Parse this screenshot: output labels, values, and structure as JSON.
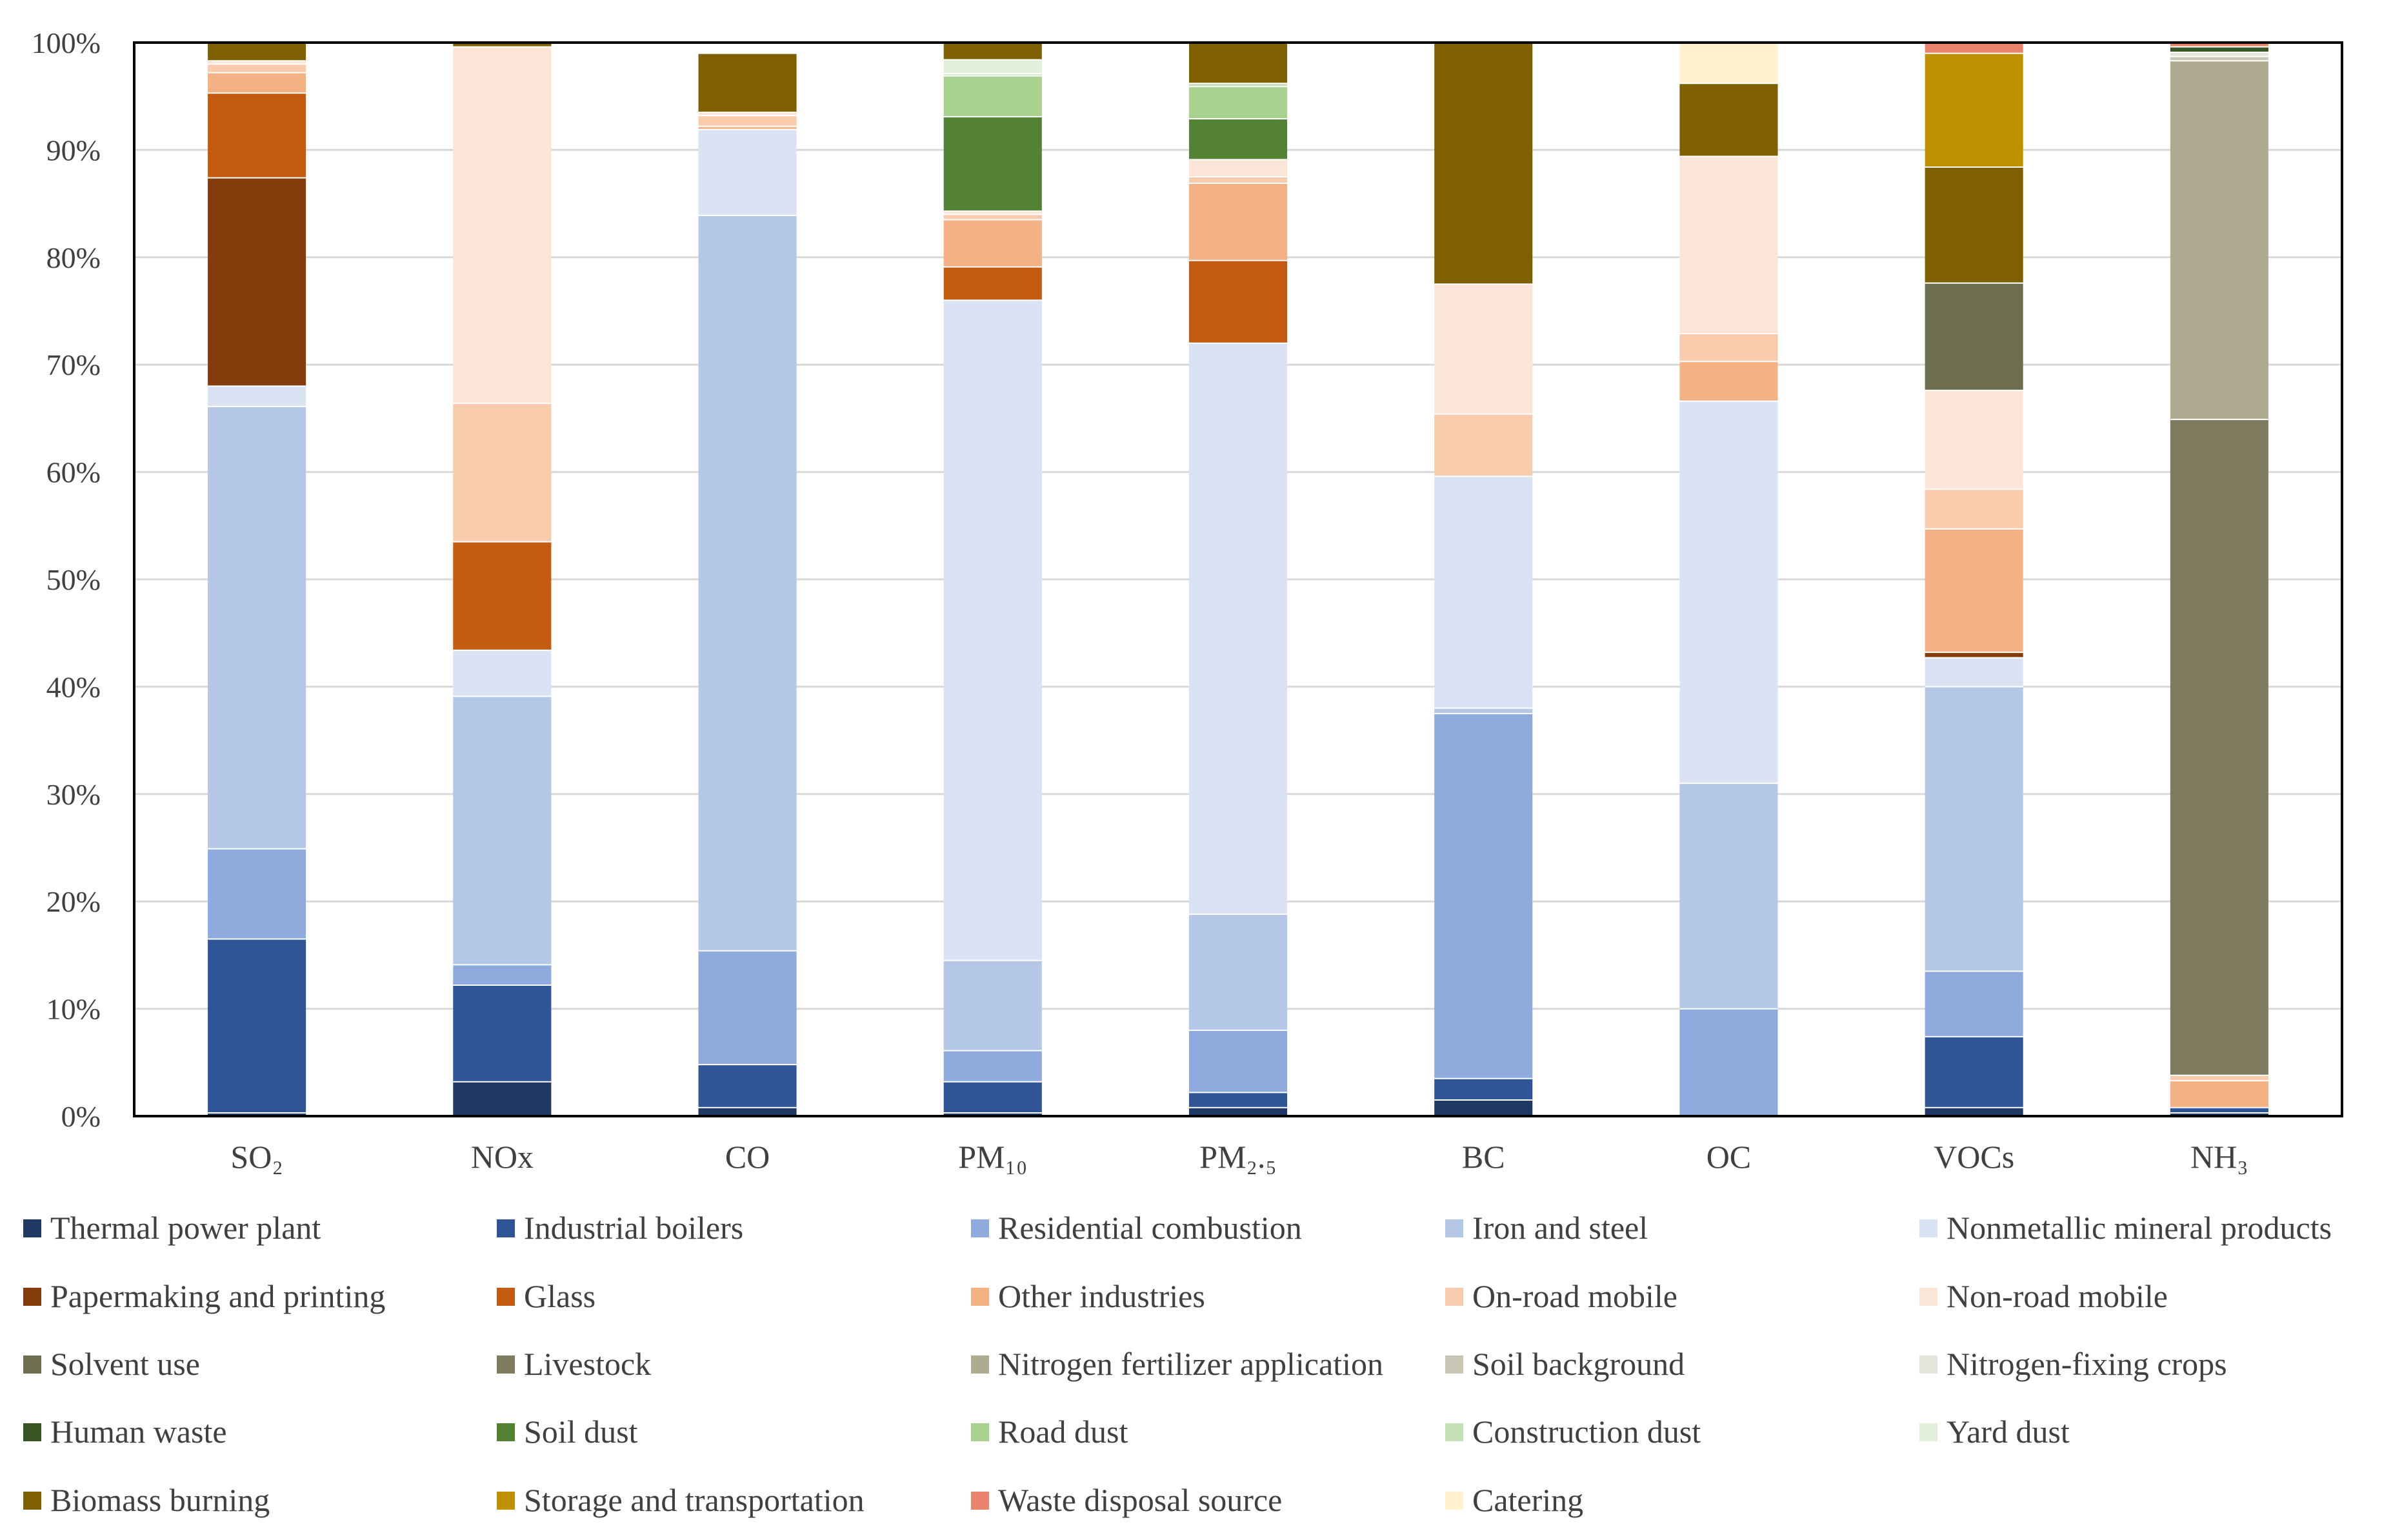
{
  "chart_data": {
    "type": "bar",
    "stacked": true,
    "title": "",
    "xlabel": "",
    "ylabel": "",
    "ylim": [
      0,
      100
    ],
    "y_ticks": [
      {
        "value": 0,
        "label": "0%"
      },
      {
        "value": 10,
        "label": "10%"
      },
      {
        "value": 20,
        "label": "20%"
      },
      {
        "value": 30,
        "label": "30%"
      },
      {
        "value": 40,
        "label": "40%"
      },
      {
        "value": 50,
        "label": "50%"
      },
      {
        "value": 60,
        "label": "60%"
      },
      {
        "value": 70,
        "label": "70%"
      },
      {
        "value": 80,
        "label": "80%"
      },
      {
        "value": 90,
        "label": "90%"
      },
      {
        "value": 100,
        "label": "100%"
      }
    ],
    "grid": true,
    "legend_position": "bottom",
    "categories": [
      "SO₂",
      "NOx",
      "CO",
      "PM₁₀",
      "PM₂.₅",
      "BC",
      "OC",
      "VOCs",
      "NH₃"
    ],
    "series": [
      {
        "name": "Thermal power plant",
        "color": "#203864",
        "values": [
          0.3,
          3.2,
          0.8,
          0.3,
          0.8,
          1.5,
          0.0,
          0.8,
          0.3
        ]
      },
      {
        "name": "Industrial boilers",
        "color": "#2f5597",
        "values": [
          16.2,
          9.0,
          4.0,
          2.9,
          1.4,
          2.0,
          0.0,
          6.6,
          0.5
        ]
      },
      {
        "name": "Residential combustion",
        "color": "#8faadc",
        "values": [
          8.4,
          1.9,
          10.6,
          2.9,
          5.8,
          34.0,
          10.0,
          6.1,
          0.0
        ]
      },
      {
        "name": "Iron and steel",
        "color": "#b4c7e7",
        "values": [
          41.2,
          25.0,
          68.5,
          8.4,
          10.8,
          0.5,
          21.0,
          26.5,
          0.0
        ]
      },
      {
        "name": "Nonmetallic mineral products",
        "color": "#dae3f3",
        "values": [
          1.9,
          4.3,
          8.0,
          61.5,
          53.2,
          21.6,
          35.6,
          2.7,
          0.0
        ]
      },
      {
        "name": "Papermaking and printing",
        "color": "#843c0c",
        "values": [
          19.4,
          0.0,
          0.0,
          0.0,
          0.0,
          0.0,
          0.0,
          0.5,
          0.0
        ]
      },
      {
        "name": "Glass",
        "color": "#c55a11",
        "values": [
          7.9,
          10.1,
          0.0,
          3.1,
          7.7,
          0.0,
          0.0,
          0.0,
          0.0
        ]
      },
      {
        "name": "Other industries",
        "color": "#f4b183",
        "values": [
          1.9,
          0.0,
          0.3,
          4.4,
          7.2,
          0.0,
          3.7,
          11.5,
          2.5
        ]
      },
      {
        "name": "On-road mobile",
        "color": "#f8cbad",
        "values": [
          0.8,
          12.9,
          1.0,
          0.5,
          0.6,
          5.8,
          2.6,
          3.7,
          0.5
        ]
      },
      {
        "name": "Non-road mobile",
        "color": "#fbe5d6",
        "values": [
          0.3,
          33.2,
          0.3,
          0.3,
          1.6,
          12.1,
          16.5,
          9.2,
          0.0
        ]
      },
      {
        "name": "Solvent use",
        "color": "#6e6e50",
        "values": [
          0.0,
          0.0,
          0.0,
          0.0,
          0.0,
          0.0,
          0.0,
          10.0,
          0.0
        ]
      },
      {
        "name": "Livestock",
        "color": "#7f7b5e",
        "values": [
          0.0,
          0.0,
          0.0,
          0.0,
          0.0,
          0.0,
          0.0,
          0.0,
          61.1
        ]
      },
      {
        "name": "Nitrogen fertilizer application",
        "color": "#aeab90",
        "values": [
          0.0,
          0.0,
          0.0,
          0.0,
          0.0,
          0.0,
          0.0,
          0.0,
          33.4
        ]
      },
      {
        "name": "Soil background",
        "color": "#c8c6b4",
        "values": [
          0.0,
          0.0,
          0.0,
          0.0,
          0.0,
          0.0,
          0.0,
          0.0,
          0.4
        ]
      },
      {
        "name": "Nitrogen-fixing crops",
        "color": "#e6e5dc",
        "values": [
          0.0,
          0.0,
          0.0,
          0.0,
          0.0,
          0.0,
          0.0,
          0.0,
          0.4
        ]
      },
      {
        "name": "Human waste",
        "color": "#375623",
        "values": [
          0.0,
          0.0,
          0.0,
          0.0,
          0.0,
          0.0,
          0.0,
          0.0,
          0.5
        ]
      },
      {
        "name": "Soil dust",
        "color": "#548235",
        "values": [
          0.0,
          0.0,
          0.0,
          8.8,
          3.8,
          0.0,
          0.0,
          0.0,
          0.0
        ]
      },
      {
        "name": "Road dust",
        "color": "#a9d18e",
        "values": [
          0.0,
          0.0,
          0.0,
          3.8,
          3.0,
          0.0,
          0.0,
          0.0,
          0.0
        ]
      },
      {
        "name": "Construction dust",
        "color": "#c5e0b4",
        "values": [
          0.0,
          0.0,
          0.0,
          0.2,
          0.3,
          0.0,
          0.0,
          0.0,
          0.0
        ]
      },
      {
        "name": "Yard dust",
        "color": "#e2f0d9",
        "values": [
          0.0,
          0.0,
          0.0,
          1.3,
          0.0,
          0.0,
          0.0,
          0.0,
          0.0
        ]
      },
      {
        "name": "Biomass burning",
        "color": "#7f6000",
        "values": [
          1.7,
          0.4,
          5.5,
          1.6,
          3.8,
          22.5,
          6.8,
          10.8,
          0.0
        ]
      },
      {
        "name": "Storage and transportation",
        "color": "#bf9000",
        "values": [
          0.0,
          0.0,
          0.0,
          0.0,
          0.0,
          0.0,
          0.0,
          10.6,
          0.0
        ]
      },
      {
        "name": "Waste disposal source",
        "color": "#e9836b",
        "values": [
          0.0,
          0.0,
          0.0,
          0.0,
          0.0,
          0.0,
          0.0,
          1.0,
          0.4
        ]
      },
      {
        "name": "Catering",
        "color": "#fff2cc",
        "values": [
          0.0,
          0.0,
          0.0,
          0.0,
          0.0,
          0.0,
          3.8,
          0.0,
          0.0
        ]
      }
    ]
  }
}
